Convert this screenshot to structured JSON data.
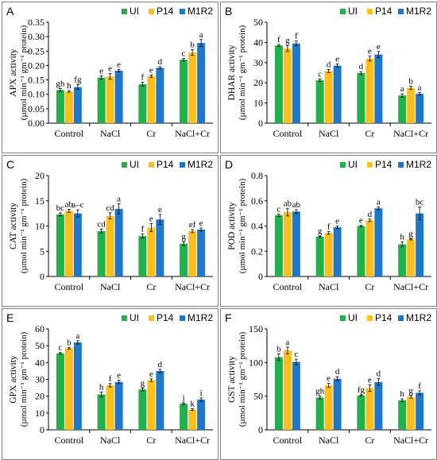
{
  "legend_labels": [
    "UI",
    "P14",
    "M1R2"
  ],
  "colors": {
    "UI": "#22b04a",
    "P14": "#fdbf1b",
    "M1R2": "#1f77c9"
  },
  "chart_data": [
    {
      "panel": "A",
      "type": "bar",
      "categories": [
        "Control",
        "NaCl",
        "Cr",
        "NaCl+Cr"
      ],
      "ylabel_main": "APX activity",
      "ylabel_unit": "(µmol min⁻¹ gm⁻¹ protein)",
      "ylim": [
        0,
        0.35
      ],
      "yticks": [
        "0.00",
        "0.05",
        "0.10",
        "0.15",
        "0.20",
        "0.25",
        "0.30",
        "0.35"
      ],
      "series": [
        {
          "name": "UI",
          "values": [
            0.115,
            0.158,
            0.135,
            0.22
          ],
          "errors": [
            0.005,
            0.006,
            0.007,
            0.004
          ],
          "letters": [
            "gh",
            "e",
            "f",
            "c"
          ]
        },
        {
          "name": "P14",
          "values": [
            0.11,
            0.162,
            0.163,
            0.245
          ],
          "errors": [
            0.003,
            0.01,
            0.004,
            0.01
          ],
          "letters": [
            "h",
            "e",
            "e",
            "b"
          ]
        },
        {
          "name": "M1R2",
          "values": [
            0.125,
            0.182,
            0.192,
            0.278
          ],
          "errors": [
            0.008,
            0.004,
            0.004,
            0.012
          ],
          "letters": [
            "fg",
            "e",
            "d",
            "a"
          ]
        }
      ]
    },
    {
      "panel": "B",
      "type": "bar",
      "categories": [
        "Control",
        "NaCl",
        "Cr",
        "NaCl+Cr"
      ],
      "ylabel_main": "DHAR activity",
      "ylabel_unit": "(µmol min⁻¹ gm⁻¹ protein)",
      "ylim": [
        0,
        50
      ],
      "yticks": [
        "0",
        "10",
        "20",
        "30",
        "40",
        "50"
      ],
      "series": [
        {
          "name": "UI",
          "values": [
            38.5,
            21.3,
            24.8,
            13.7
          ],
          "errors": [
            0.5,
            0.6,
            0.7,
            0.8
          ],
          "letters": [
            "f",
            "c",
            "d",
            "a"
          ]
        },
        {
          "name": "P14",
          "values": [
            37.0,
            25.8,
            32.0,
            17.5
          ],
          "errors": [
            1.5,
            0.8,
            1.2,
            0.8
          ],
          "letters": [
            "g",
            "d",
            "e",
            "b"
          ]
        },
        {
          "name": "M1R2",
          "values": [
            39.5,
            28.5,
            34.0,
            14.5
          ],
          "errors": [
            1.2,
            0.8,
            1.5,
            0.6
          ],
          "letters": [
            "f",
            "e",
            "e",
            "a"
          ]
        }
      ]
    },
    {
      "panel": "C",
      "type": "bar",
      "categories": [
        "Control",
        "NaCl",
        "Cr",
        "NaCl+Cr"
      ],
      "ylabel_main": "CAT activity",
      "ylabel_unit": "(µmol min⁻¹ gm⁻¹ protein)",
      "ylim": [
        0,
        20
      ],
      "yticks": [
        "0",
        "5",
        "10",
        "15",
        "20"
      ],
      "series": [
        {
          "name": "UI",
          "values": [
            12.3,
            9.0,
            8.0,
            6.5
          ],
          "errors": [
            0.3,
            0.4,
            0.4,
            0.4
          ],
          "letters": [
            "bc",
            "cd",
            "f",
            "g"
          ]
        },
        {
          "name": "P14",
          "values": [
            13.0,
            12.0,
            9.7,
            9.0
          ],
          "errors": [
            0.3,
            0.6,
            0.8,
            0.3
          ],
          "letters": [
            "ab",
            "cd",
            "e",
            "ef"
          ]
        },
        {
          "name": "M1R2",
          "values": [
            12.5,
            13.4,
            11.3,
            9.3
          ],
          "errors": [
            0.7,
            1.0,
            1.0,
            0.3
          ],
          "letters": [
            "a–c",
            "a",
            "e",
            "e"
          ]
        }
      ]
    },
    {
      "panel": "D",
      "type": "bar",
      "categories": [
        "Control",
        "NaCl",
        "Cr",
        "NaCl+Cr"
      ],
      "ylabel_main": "POD activity",
      "ylabel_unit": "(µmol min⁻¹ gm⁻¹ protein)",
      "ylim": [
        0,
        0.8
      ],
      "yticks": [
        "0",
        "0.2",
        "0.4",
        "0.6",
        "0.8"
      ],
      "series": [
        {
          "name": "UI",
          "values": [
            0.485,
            0.315,
            0.4,
            0.255
          ],
          "errors": [
            0.01,
            0.005,
            0.005,
            0.02
          ],
          "letters": [
            "c",
            "g",
            "e",
            "h"
          ]
        },
        {
          "name": "P14",
          "values": [
            0.51,
            0.345,
            0.445,
            0.295
          ],
          "errors": [
            0.03,
            0.01,
            0.01,
            0.005
          ],
          "letters": [
            "ab",
            "f",
            "d",
            "g"
          ]
        },
        {
          "name": "M1R2",
          "values": [
            0.515,
            0.39,
            0.54,
            0.5
          ],
          "errors": [
            0.015,
            0.01,
            0.01,
            0.05
          ],
          "letters": [
            "ab",
            "e",
            "a",
            "bc"
          ]
        }
      ]
    },
    {
      "panel": "E",
      "type": "bar",
      "categories": [
        "Control",
        "NaCl",
        "Cr",
        "NaCl+Cr"
      ],
      "ylabel_main": "GPX activity",
      "ylabel_unit": "(µmol min⁻¹ gm⁻¹ protein)",
      "ylim": [
        0,
        60
      ],
      "yticks": [
        "0",
        "10",
        "20",
        "30",
        "40",
        "50",
        "60"
      ],
      "series": [
        {
          "name": "UI",
          "values": [
            45.5,
            21.0,
            24.0,
            15.5
          ],
          "errors": [
            0.5,
            1.5,
            0.8,
            0.5
          ],
          "letters": [
            "c",
            "h",
            "g",
            "j"
          ]
        },
        {
          "name": "P14",
          "values": [
            48.5,
            26.5,
            29.5,
            12.0
          ],
          "errors": [
            0.5,
            1.0,
            0.8,
            0.5
          ],
          "letters": [
            "b",
            "f",
            "e",
            "k"
          ]
        },
        {
          "name": "M1R2",
          "values": [
            52.0,
            28.5,
            35.0,
            18.0
          ],
          "errors": [
            1.0,
            1.0,
            1.0,
            1.0
          ],
          "letters": [
            "a",
            "e",
            "d",
            "i"
          ]
        }
      ]
    },
    {
      "panel": "F",
      "type": "bar",
      "categories": [
        "Control",
        "NaCl",
        "Cr",
        "NaCl+Cr"
      ],
      "ylabel_main": "GST activity",
      "ylabel_unit": "(µmol min⁻¹ gm⁻¹ protein)",
      "ylim": [
        0,
        150
      ],
      "yticks": [
        "0",
        "50",
        "100",
        "150"
      ],
      "series": [
        {
          "name": "UI",
          "values": [
            108,
            48,
            51,
            44
          ],
          "errors": [
            5,
            2,
            1,
            2
          ],
          "letters": [
            "b",
            "gh",
            "fg",
            "h"
          ]
        },
        {
          "name": "P14",
          "values": [
            118,
            66,
            62,
            49
          ],
          "errors": [
            5,
            3,
            5,
            2
          ],
          "letters": [
            "a",
            "e",
            "e",
            "g"
          ]
        },
        {
          "name": "M1R2",
          "values": [
            101,
            76,
            71,
            55
          ],
          "errors": [
            4,
            3,
            5,
            3
          ],
          "letters": [
            "c",
            "d",
            "d",
            "f"
          ]
        }
      ]
    }
  ]
}
